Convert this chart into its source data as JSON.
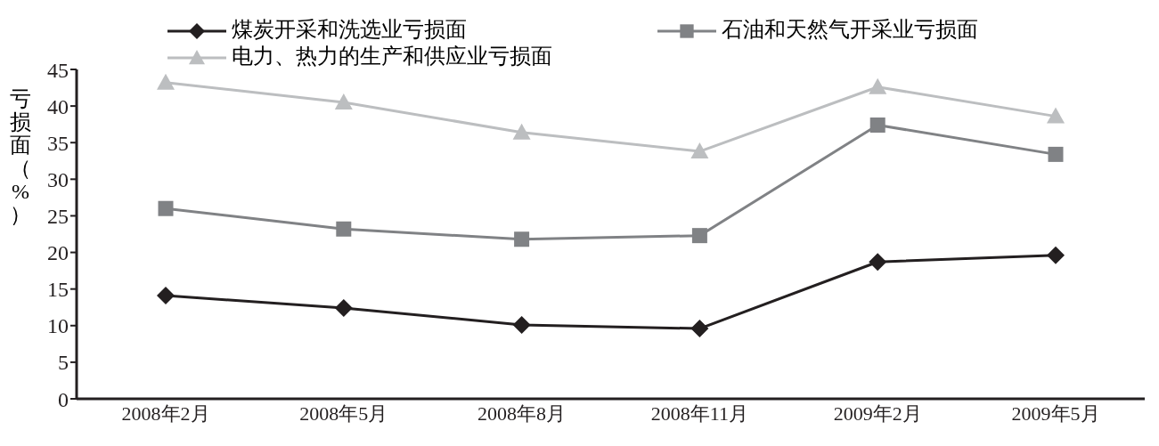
{
  "chart_data": {
    "type": "line",
    "ylabel": "亏损面（%）",
    "categories": [
      "2008年2月",
      "2008年5月",
      "2008年8月",
      "2008年11月",
      "2009年2月",
      "2009年5月"
    ],
    "ylim": [
      0,
      45
    ],
    "yticks": [
      0,
      5,
      10,
      15,
      20,
      25,
      30,
      35,
      40,
      45
    ],
    "grid": false,
    "legend": "top",
    "series": [
      {
        "name": "煤炭开采和洗选业亏损面",
        "color": "#231f20",
        "marker": "diamond",
        "values": [
          14.1,
          12.4,
          10.1,
          9.6,
          18.7,
          19.6
        ]
      },
      {
        "name": "石油和天然气开采业亏损面",
        "color": "#808285",
        "marker": "square",
        "values": [
          26.0,
          23.2,
          21.8,
          22.3,
          37.4,
          33.4
        ]
      },
      {
        "name": "电力、热力的生产和供应业亏损面",
        "color": "#bcbec0",
        "marker": "triangle",
        "values": [
          43.2,
          40.5,
          36.4,
          33.8,
          42.6,
          38.6
        ]
      }
    ]
  }
}
